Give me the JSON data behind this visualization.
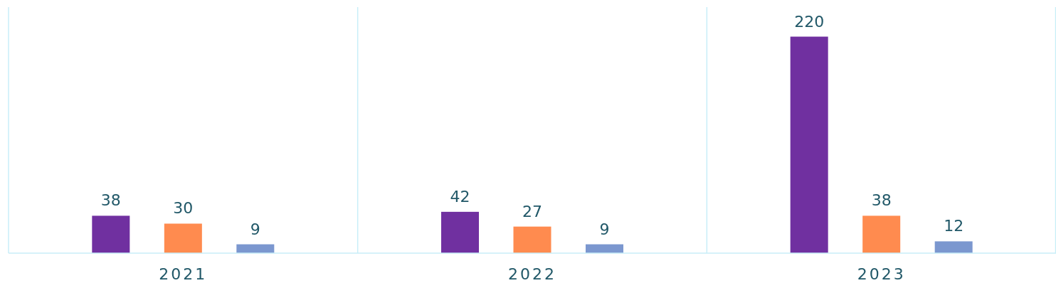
{
  "chart_data": {
    "type": "bar",
    "categories": [
      "2021",
      "2022",
      "2023"
    ],
    "series": [
      {
        "color": "#7030a0",
        "values": [
          38,
          42,
          220
        ]
      },
      {
        "color": "#ff8b4f",
        "values": [
          30,
          27,
          38
        ]
      },
      {
        "color": "#7b97cf",
        "values": [
          9,
          9,
          12
        ]
      }
    ],
    "ylim": [
      0,
      250
    ],
    "data_labels": true,
    "grid": "x"
  }
}
